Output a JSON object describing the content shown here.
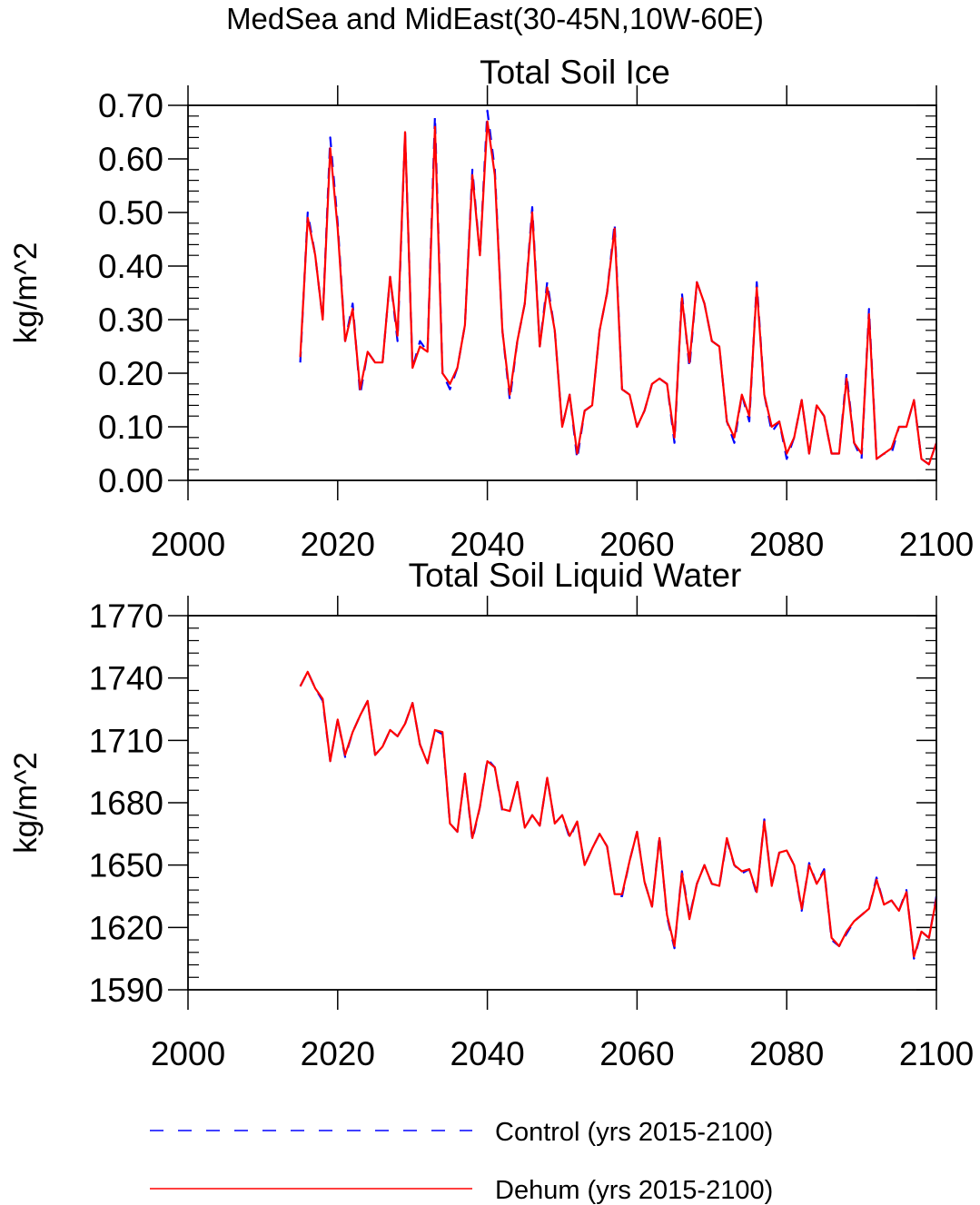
{
  "figure_title": "MedSea and MidEast(30-45N,10W-60E)",
  "legend": [
    {
      "label": "Control (yrs 2015-2100)",
      "color": "#0000ff",
      "dash": "dashed"
    },
    {
      "label": "Dehum (yrs 2015-2100)",
      "color": "#ff0000",
      "dash": "solid"
    }
  ],
  "chart_data": [
    {
      "type": "line",
      "title": "Total Soil Ice",
      "xlabel": "",
      "ylabel": "kg/m^2",
      "xlim": [
        2000,
        2100
      ],
      "ylim": [
        0.0,
        0.7
      ],
      "xticks": [
        2000,
        2020,
        2040,
        2060,
        2080,
        2100
      ],
      "xticklabels": [
        "2000",
        "2020",
        "2040",
        "2060",
        "2080",
        "2100"
      ],
      "yticks": [
        0.0,
        0.1,
        0.2,
        0.3,
        0.4,
        0.5,
        0.6,
        0.7
      ],
      "yticklabels": [
        "0.00",
        "0.10",
        "0.20",
        "0.30",
        "0.40",
        "0.50",
        "0.60",
        "0.70"
      ],
      "x": [
        2015,
        2016,
        2017,
        2018,
        2019,
        2020,
        2021,
        2022,
        2023,
        2024,
        2025,
        2026,
        2027,
        2028,
        2029,
        2030,
        2031,
        2032,
        2033,
        2034,
        2035,
        2036,
        2037,
        2038,
        2039,
        2040,
        2041,
        2042,
        2043,
        2044,
        2045,
        2046,
        2047,
        2048,
        2049,
        2050,
        2051,
        2052,
        2053,
        2054,
        2055,
        2056,
        2057,
        2058,
        2059,
        2060,
        2061,
        2062,
        2063,
        2064,
        2065,
        2066,
        2067,
        2068,
        2069,
        2070,
        2071,
        2072,
        2073,
        2074,
        2075,
        2076,
        2077,
        2078,
        2079,
        2080,
        2081,
        2082,
        2083,
        2084,
        2085,
        2086,
        2087,
        2088,
        2089,
        2090,
        2091,
        2092,
        2093,
        2094,
        2095,
        2096,
        2097,
        2098,
        2099,
        2100
      ],
      "series": [
        {
          "name": "Control (yrs 2015-2100)",
          "color": "#0000ff",
          "dash": "dashed",
          "values": [
            0.22,
            0.5,
            0.42,
            0.3,
            0.64,
            0.48,
            0.26,
            0.33,
            0.16,
            0.24,
            0.22,
            0.22,
            0.38,
            0.26,
            0.65,
            0.21,
            0.26,
            0.24,
            0.68,
            0.2,
            0.17,
            0.21,
            0.29,
            0.58,
            0.42,
            0.69,
            0.58,
            0.28,
            0.15,
            0.26,
            0.33,
            0.51,
            0.25,
            0.37,
            0.28,
            0.1,
            0.16,
            0.04,
            0.13,
            0.14,
            0.28,
            0.35,
            0.48,
            0.17,
            0.16,
            0.1,
            0.13,
            0.18,
            0.19,
            0.18,
            0.07,
            0.35,
            0.21,
            0.37,
            0.33,
            0.26,
            0.25,
            0.11,
            0.07,
            0.16,
            0.11,
            0.37,
            0.16,
            0.09,
            0.11,
            0.04,
            0.08,
            0.15,
            0.05,
            0.14,
            0.12,
            0.05,
            0.05,
            0.2,
            0.07,
            0.04,
            0.32,
            0.04,
            0.05,
            0.05,
            0.1,
            0.1,
            0.15,
            0.04,
            0.03,
            0.07
          ]
        },
        {
          "name": "Dehum (yrs 2015-2100)",
          "color": "#ff0000",
          "dash": "solid",
          "values": [
            0.23,
            0.49,
            0.42,
            0.3,
            0.62,
            0.47,
            0.26,
            0.32,
            0.17,
            0.24,
            0.22,
            0.22,
            0.38,
            0.27,
            0.65,
            0.21,
            0.25,
            0.24,
            0.66,
            0.2,
            0.18,
            0.21,
            0.29,
            0.57,
            0.42,
            0.67,
            0.57,
            0.28,
            0.16,
            0.26,
            0.33,
            0.5,
            0.25,
            0.36,
            0.28,
            0.1,
            0.16,
            0.05,
            0.13,
            0.14,
            0.28,
            0.35,
            0.47,
            0.17,
            0.16,
            0.1,
            0.13,
            0.18,
            0.19,
            0.18,
            0.08,
            0.34,
            0.22,
            0.37,
            0.33,
            0.26,
            0.25,
            0.11,
            0.08,
            0.16,
            0.12,
            0.36,
            0.16,
            0.1,
            0.11,
            0.05,
            0.08,
            0.15,
            0.05,
            0.14,
            0.12,
            0.05,
            0.05,
            0.19,
            0.07,
            0.05,
            0.31,
            0.04,
            0.05,
            0.06,
            0.1,
            0.1,
            0.15,
            0.04,
            0.03,
            0.07
          ]
        }
      ]
    },
    {
      "type": "line",
      "title": "Total Soil Liquid Water",
      "xlabel": "",
      "ylabel": "kg/m^2",
      "xlim": [
        2000,
        2100
      ],
      "ylim": [
        1590,
        1770
      ],
      "xticks": [
        2000,
        2020,
        2040,
        2060,
        2080,
        2100
      ],
      "xticklabels": [
        "2000",
        "2020",
        "2040",
        "2060",
        "2080",
        "2100"
      ],
      "yticks": [
        1590,
        1620,
        1650,
        1680,
        1710,
        1740,
        1770
      ],
      "yticklabels": [
        "1590",
        "1620",
        "1650",
        "1680",
        "1710",
        "1740",
        "1770"
      ],
      "x": [
        2015,
        2016,
        2017,
        2018,
        2019,
        2020,
        2021,
        2022,
        2023,
        2024,
        2025,
        2026,
        2027,
        2028,
        2029,
        2030,
        2031,
        2032,
        2033,
        2034,
        2035,
        2036,
        2037,
        2038,
        2039,
        2040,
        2041,
        2042,
        2043,
        2044,
        2045,
        2046,
        2047,
        2048,
        2049,
        2050,
        2051,
        2052,
        2053,
        2054,
        2055,
        2056,
        2057,
        2058,
        2059,
        2060,
        2061,
        2062,
        2063,
        2064,
        2065,
        2066,
        2067,
        2068,
        2069,
        2070,
        2071,
        2072,
        2073,
        2074,
        2075,
        2076,
        2077,
        2078,
        2079,
        2080,
        2081,
        2082,
        2083,
        2084,
        2085,
        2086,
        2087,
        2088,
        2089,
        2090,
        2091,
        2092,
        2093,
        2094,
        2095,
        2096,
        2097,
        2098,
        2099,
        2100
      ],
      "series": [
        {
          "name": "Control (yrs 2015-2100)",
          "color": "#0000ff",
          "dash": "dashed",
          "values": [
            1736,
            1743,
            1735,
            1729,
            1700,
            1720,
            1702,
            1714,
            1722,
            1729,
            1703,
            1707,
            1715,
            1712,
            1718,
            1728,
            1708,
            1699,
            1715,
            1713,
            1670,
            1666,
            1694,
            1662,
            1678,
            1701,
            1697,
            1676,
            1676,
            1690,
            1668,
            1674,
            1669,
            1692,
            1670,
            1674,
            1663,
            1671,
            1650,
            1658,
            1665,
            1659,
            1636,
            1635,
            1652,
            1666,
            1642,
            1630,
            1664,
            1625,
            1610,
            1647,
            1625,
            1641,
            1650,
            1641,
            1640,
            1662,
            1650,
            1646,
            1648,
            1636,
            1672,
            1640,
            1656,
            1657,
            1650,
            1628,
            1651,
            1641,
            1648,
            1614,
            1611,
            1617,
            1623,
            1626,
            1629,
            1644,
            1631,
            1633,
            1628,
            1638,
            1605,
            1618,
            1615,
            1635
          ]
        },
        {
          "name": "Dehum (yrs 2015-2100)",
          "color": "#ff0000",
          "dash": "solid",
          "values": [
            1736,
            1743,
            1735,
            1730,
            1700,
            1720,
            1703,
            1714,
            1722,
            1729,
            1703,
            1707,
            1715,
            1712,
            1718,
            1728,
            1708,
            1699,
            1715,
            1714,
            1670,
            1666,
            1694,
            1663,
            1678,
            1700,
            1697,
            1677,
            1676,
            1690,
            1668,
            1674,
            1669,
            1692,
            1670,
            1674,
            1664,
            1671,
            1650,
            1658,
            1665,
            1659,
            1636,
            1636,
            1652,
            1666,
            1642,
            1630,
            1663,
            1626,
            1611,
            1646,
            1624,
            1641,
            1650,
            1641,
            1640,
            1663,
            1650,
            1647,
            1648,
            1637,
            1671,
            1640,
            1656,
            1657,
            1650,
            1629,
            1650,
            1641,
            1647,
            1615,
            1611,
            1618,
            1623,
            1626,
            1629,
            1643,
            1631,
            1633,
            1628,
            1637,
            1606,
            1618,
            1615,
            1634
          ]
        }
      ]
    }
  ]
}
